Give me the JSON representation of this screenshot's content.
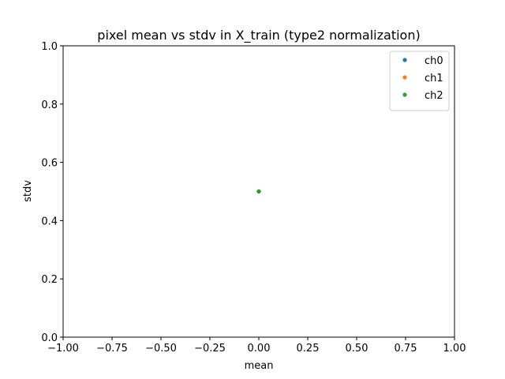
{
  "chart_data": {
    "type": "scatter",
    "title": "pixel mean vs stdv in X_train (type2 normalization)",
    "xlabel": "mean",
    "ylabel": "stdv",
    "xlim": [
      -1.0,
      1.0
    ],
    "ylim": [
      0.0,
      1.0
    ],
    "xticks": [
      -1.0,
      -0.75,
      -0.5,
      -0.25,
      0.0,
      0.25,
      0.5,
      0.75,
      1.0
    ],
    "xtick_labels": [
      "−1.00",
      "−0.75",
      "−0.50",
      "−0.25",
      "0.00",
      "0.25",
      "0.50",
      "0.75",
      "1.00"
    ],
    "yticks": [
      0.0,
      0.2,
      0.4,
      0.6,
      0.8,
      1.0
    ],
    "ytick_labels": [
      "0.0",
      "0.2",
      "0.4",
      "0.6",
      "0.8",
      "1.0"
    ],
    "grid": false,
    "legend_position": "top-right",
    "series": [
      {
        "name": "ch0",
        "color": "#1f77b4",
        "points": [
          {
            "x": 0.0,
            "y": 0.5
          }
        ]
      },
      {
        "name": "ch1",
        "color": "#ff7f0e",
        "points": [
          {
            "x": 0.0,
            "y": 0.5
          }
        ]
      },
      {
        "name": "ch2",
        "color": "#2ca02c",
        "points": [
          {
            "x": 0.0,
            "y": 0.5
          }
        ]
      }
    ]
  }
}
